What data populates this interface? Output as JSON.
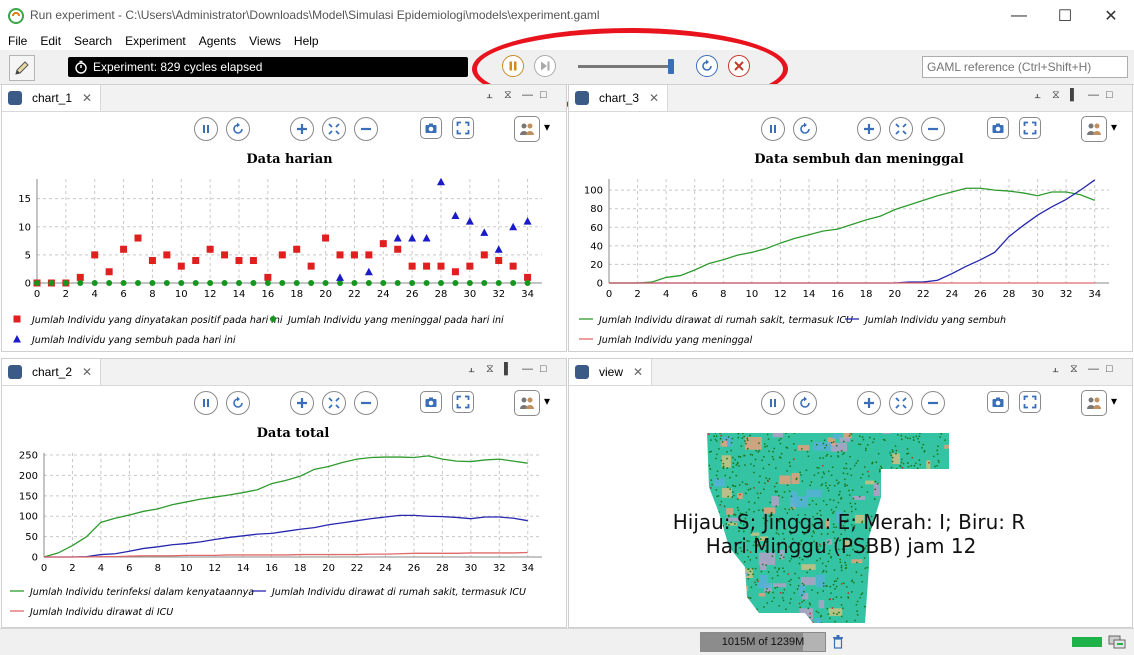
{
  "window": {
    "title": "Run experiment - C:\\Users\\Administrator\\Downloads\\Model\\Simulasi Epidemiologi\\models\\experiment.gaml"
  },
  "menu": [
    "File",
    "Edit",
    "Search",
    "Experiment",
    "Agents",
    "Views",
    "Help"
  ],
  "toolbar": {
    "status": "Experiment: 829 cycles elapsed",
    "search_placeholder": "GAML reference (Ctrl+Shift+H)",
    "speed_fraction": 0.97
  },
  "panels": {
    "chart_1": {
      "tab": "chart_1",
      "chart_data": {
        "type": "scatter",
        "title": "Data harian",
        "xlim": [
          0,
          35
        ],
        "ylim": [
          0,
          18.5
        ],
        "xticks": [
          0,
          2,
          4,
          6,
          8,
          10,
          12,
          14,
          16,
          18,
          20,
          22,
          24,
          26,
          28,
          30,
          32,
          34
        ],
        "yticks": [
          0,
          5,
          10,
          15
        ],
        "grid": true,
        "legend_position": "bottom",
        "series": [
          {
            "name": "Jumlah Individu yang dinyatakan positif pada hari ini",
            "color": "#e01f1f",
            "marker": "square",
            "x": [
              0,
              1,
              2,
              3,
              4,
              5,
              6,
              7,
              8,
              9,
              10,
              11,
              12,
              13,
              14,
              15,
              16,
              17,
              18,
              19,
              20,
              21,
              22,
              23,
              24,
              25,
              26,
              27,
              28,
              29,
              30,
              31,
              32,
              33,
              34
            ],
            "y": [
              0,
              0,
              0,
              1,
              5,
              2,
              6,
              8,
              4,
              5,
              3,
              4,
              6,
              5,
              4,
              4,
              1,
              5,
              6,
              3,
              8,
              5,
              5,
              5,
              7,
              6,
              3,
              3,
              3,
              2,
              3,
              5,
              4,
              3,
              1
            ]
          },
          {
            "name": "Jumlah Individu yang meninggal pada hari ini",
            "color": "#15961f",
            "marker": "circle",
            "x": [
              0,
              1,
              2,
              3,
              4,
              5,
              6,
              7,
              8,
              9,
              10,
              11,
              12,
              13,
              14,
              15,
              16,
              17,
              18,
              19,
              20,
              21,
              22,
              23,
              24,
              25,
              26,
              27,
              28,
              29,
              30,
              31,
              32,
              33,
              34
            ],
            "y": [
              0,
              0,
              0,
              0,
              0,
              0,
              0,
              0,
              0,
              0,
              0,
              0,
              0,
              0,
              0,
              0,
              0,
              0,
              0,
              0,
              0,
              0,
              0,
              0,
              0,
              0,
              0,
              0,
              0,
              0,
              0,
              0,
              0,
              0,
              0
            ]
          },
          {
            "name": "Jumlah Individu yang sembuh pada hari ini",
            "color": "#1a1ac8",
            "marker": "triangle",
            "x": [
              21,
              23,
              25,
              26,
              27,
              28,
              29,
              30,
              31,
              32,
              33,
              34
            ],
            "y": [
              1,
              2,
              8,
              8,
              8,
              18,
              12,
              11,
              9,
              6,
              10,
              11
            ]
          }
        ]
      }
    },
    "chart_3": {
      "tab": "chart_3",
      "chart_data": {
        "type": "line",
        "title": "Data sembuh dan meninggal",
        "xlim": [
          0,
          35
        ],
        "ylim": [
          0,
          112
        ],
        "xticks": [
          0,
          2,
          4,
          6,
          8,
          10,
          12,
          14,
          16,
          18,
          20,
          22,
          24,
          26,
          28,
          30,
          32,
          34
        ],
        "yticks": [
          0,
          20,
          40,
          60,
          80,
          100
        ],
        "grid": true,
        "legend_position": "bottom",
        "series": [
          {
            "name": "Jumlah Individu dirawat di rumah sakit, termasuk ICU",
            "color": "#2e9b2e",
            "x": [
              0,
              1,
              2,
              3,
              4,
              5,
              6,
              7,
              8,
              9,
              10,
              11,
              12,
              13,
              14,
              15,
              16,
              17,
              18,
              19,
              20,
              21,
              22,
              23,
              24,
              25,
              26,
              27,
              28,
              29,
              30,
              31,
              32,
              33,
              34
            ],
            "y": [
              0,
              0,
              0,
              1,
              6,
              8,
              14,
              21,
              25,
              30,
              33,
              37,
              43,
              48,
              52,
              56,
              58,
              63,
              68,
              72,
              79,
              84,
              89,
              94,
              98,
              102,
              102,
              100,
              99,
              97,
              94,
              98,
              98,
              95,
              89
            ]
          },
          {
            "name": "Jumlah Individu yang sembuh",
            "color": "#2626b0",
            "x": [
              0,
              1,
              2,
              3,
              4,
              5,
              6,
              7,
              8,
              9,
              10,
              11,
              12,
              13,
              14,
              15,
              16,
              17,
              18,
              19,
              20,
              21,
              22,
              23,
              24,
              25,
              26,
              27,
              28,
              29,
              30,
              31,
              32,
              33,
              34
            ],
            "y": [
              0,
              0,
              0,
              0,
              0,
              0,
              0,
              0,
              0,
              0,
              0,
              0,
              0,
              0,
              0,
              0,
              0,
              0,
              0,
              0,
              0,
              1,
              1,
              3,
              10,
              18,
              25,
              33,
              50,
              62,
              73,
              82,
              90,
              100,
              111
            ]
          },
          {
            "name": "Jumlah Individu yang meninggal",
            "color": "#e06a6a",
            "x": [
              0,
              34
            ],
            "y": [
              0,
              0
            ]
          }
        ]
      }
    },
    "chart_2": {
      "tab": "chart_2",
      "chart_data": {
        "type": "line",
        "title": "Data total",
        "xlim": [
          0,
          35
        ],
        "ylim": [
          0,
          255
        ],
        "xticks": [
          0,
          2,
          4,
          6,
          8,
          10,
          12,
          14,
          16,
          18,
          20,
          22,
          24,
          26,
          28,
          30,
          32,
          34
        ],
        "yticks": [
          0,
          50,
          100,
          150,
          200,
          250
        ],
        "grid": true,
        "legend_position": "bottom",
        "series": [
          {
            "name": "Jumlah Individu terinfeksi dalam kenyataannya",
            "color": "#2e9b2e",
            "x": [
              0,
              1,
              2,
              3,
              4,
              5,
              6,
              7,
              8,
              9,
              10,
              11,
              12,
              13,
              14,
              15,
              16,
              17,
              18,
              19,
              20,
              21,
              22,
              23,
              24,
              25,
              26,
              27,
              28,
              29,
              30,
              31,
              32,
              33,
              34
            ],
            "y": [
              0,
              10,
              28,
              50,
              85,
              95,
              103,
              112,
              118,
              128,
              135,
              142,
              147,
              152,
              158,
              165,
              180,
              188,
              198,
              215,
              222,
              232,
              240,
              244,
              245,
              245,
              244,
              248,
              240,
              235,
              234,
              238,
              240,
              235,
              230
            ]
          },
          {
            "name": "Jumlah Individu dirawat di rumah sakit, termasuk ICU",
            "color": "#2626b0",
            "x": [
              0,
              1,
              2,
              3,
              4,
              5,
              6,
              7,
              8,
              9,
              10,
              11,
              12,
              13,
              14,
              15,
              16,
              17,
              18,
              19,
              20,
              21,
              22,
              23,
              24,
              25,
              26,
              27,
              28,
              29,
              30,
              31,
              32,
              33,
              34
            ],
            "y": [
              0,
              0,
              0,
              1,
              6,
              8,
              14,
              21,
              25,
              30,
              33,
              37,
              43,
              48,
              52,
              56,
              58,
              63,
              68,
              72,
              79,
              84,
              89,
              94,
              98,
              102,
              102,
              100,
              99,
              97,
              94,
              98,
              98,
              95,
              89
            ]
          },
          {
            "name": "Jumlah Individu dirawat di ICU",
            "color": "#e06a6a",
            "x": [
              0,
              1,
              2,
              3,
              4,
              5,
              6,
              7,
              8,
              9,
              10,
              11,
              12,
              13,
              14,
              15,
              16,
              17,
              18,
              19,
              20,
              21,
              22,
              23,
              24,
              25,
              26,
              27,
              28,
              29,
              30,
              31,
              32,
              33,
              34
            ],
            "y": [
              0,
              0,
              0,
              0,
              1,
              1,
              2,
              3,
              3,
              3,
              4,
              4,
              4,
              5,
              5,
              5,
              5,
              5,
              6,
              6,
              6,
              6,
              6,
              7,
              7,
              8,
              9,
              9,
              9,
              9,
              10,
              10,
              10,
              10,
              11
            ]
          }
        ]
      }
    },
    "view": {
      "tab": "view",
      "overlay_line1": "Hijau: S; Jingga: E; Merah: I; Biru: R",
      "overlay_line2": "Hari Minggu (PSBB) jam 12"
    }
  },
  "statusbar": {
    "heap": "1015M of 1239M",
    "heap_fraction": 0.82
  }
}
